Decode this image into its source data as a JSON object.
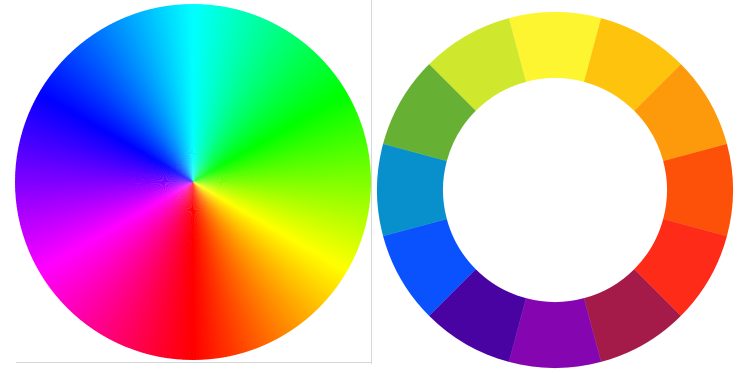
{
  "continuous_wheel": {
    "stops": [
      {
        "hue": "#00ffff",
        "angle": 0
      },
      {
        "hue": "#00ff00",
        "angle": 60
      },
      {
        "hue": "#ffff00",
        "angle": 120
      },
      {
        "hue": "#ff0000",
        "angle": 180
      },
      {
        "hue": "#ff00ff",
        "angle": 240
      },
      {
        "hue": "#0000ff",
        "angle": 300
      },
      {
        "hue": "#00ffff",
        "angle": 360
      }
    ]
  },
  "segmented_wheel": {
    "segments": [
      {
        "name": "yellow",
        "color": "#fdf530"
      },
      {
        "name": "yellow-orange",
        "color": "#fdc30d"
      },
      {
        "name": "orange",
        "color": "#fd9a0b"
      },
      {
        "name": "red-orange",
        "color": "#fd5109"
      },
      {
        "name": "red",
        "color": "#fd2b17"
      },
      {
        "name": "red-violet",
        "color": "#a41b4a"
      },
      {
        "name": "violet",
        "color": "#8505b0"
      },
      {
        "name": "blue-violet",
        "color": "#4a03a3"
      },
      {
        "name": "blue",
        "color": "#0a52fd"
      },
      {
        "name": "blue-green",
        "color": "#0890cc"
      },
      {
        "name": "green",
        "color": "#66b034"
      },
      {
        "name": "yellow-green",
        "color": "#cfe82d"
      }
    ]
  }
}
